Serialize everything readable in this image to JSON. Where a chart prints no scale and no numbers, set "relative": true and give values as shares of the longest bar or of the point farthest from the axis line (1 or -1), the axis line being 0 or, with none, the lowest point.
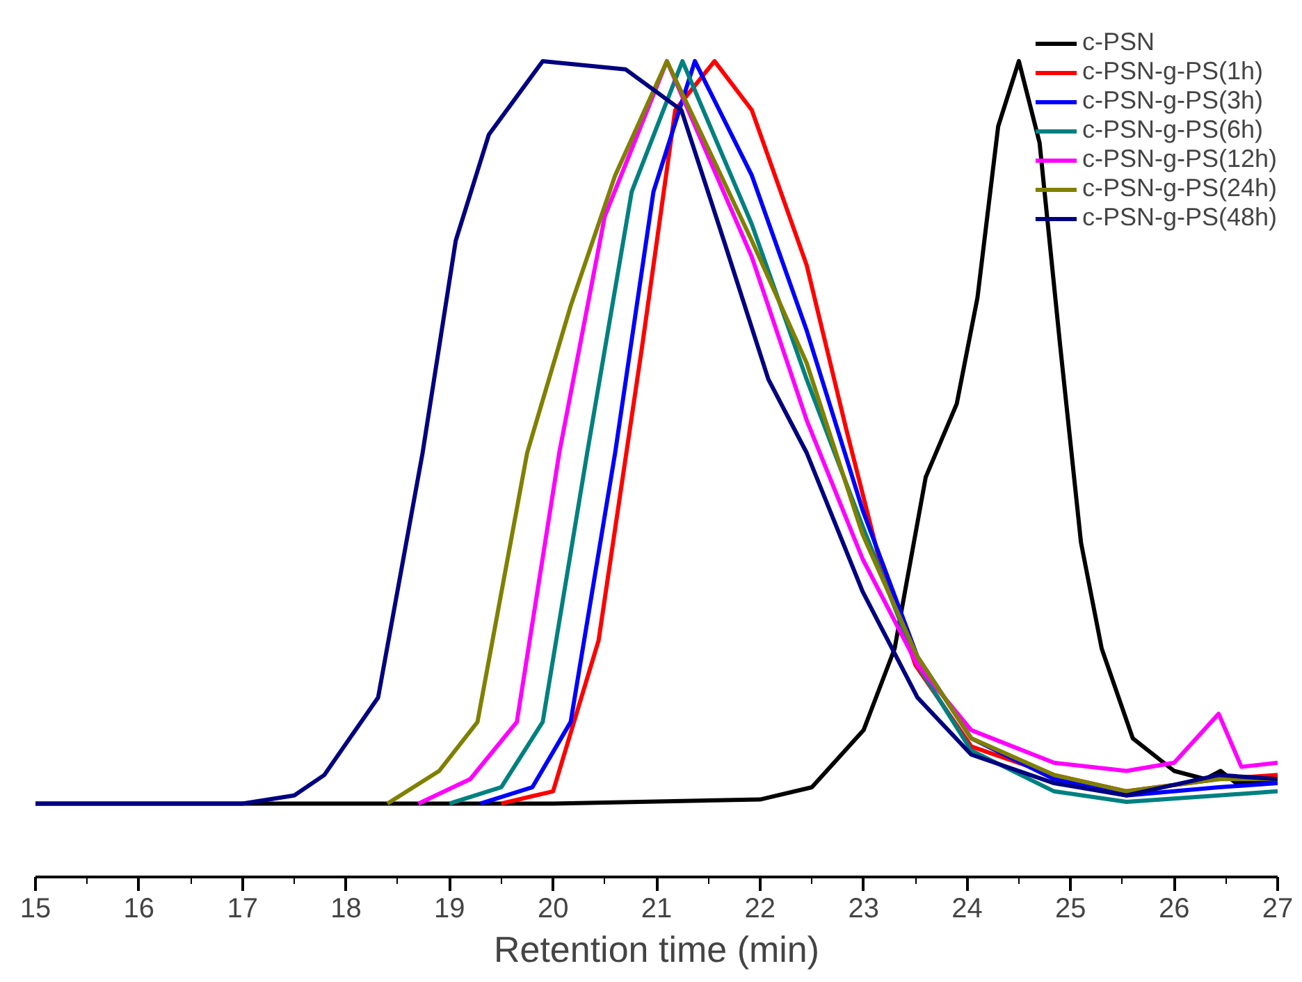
{
  "chart_data": {
    "type": "line",
    "xlabel": "Retention time (min)",
    "relative": true,
    "xlim": [
      15,
      27
    ],
    "xticks": [
      15,
      16,
      17,
      18,
      19,
      20,
      21,
      22,
      23,
      24,
      25,
      26,
      27
    ],
    "grid": false,
    "legend": "top right",
    "line_style": "solid",
    "marker": "none",
    "series": [
      {
        "name": "c-PSN",
        "color": "#000000",
        "x": [
          15,
          20,
          22,
          22.5,
          23,
          23.3,
          23.6,
          23.9,
          24.1,
          24.3,
          24.5,
          24.7,
          24.9,
          25.1,
          25.3,
          25.6,
          26,
          26.3,
          26.45,
          26.6,
          27
        ],
        "values": [
          0.09,
          0.09,
          0.095,
          0.11,
          0.18,
          0.28,
          0.49,
          0.58,
          0.71,
          0.92,
          1.0,
          0.9,
          0.65,
          0.41,
          0.28,
          0.17,
          0.13,
          0.12,
          0.13,
          0.115,
          0.12
        ]
      },
      {
        "name": "c-PSN-g-PS(1h)",
        "color": "#ff0000",
        "x": [
          19.5,
          20,
          20.44,
          20.86,
          21.18,
          21.56,
          21.92,
          22.45,
          22.83,
          23.15,
          23.5,
          24.04,
          24.84,
          25.54,
          26.43,
          27
        ],
        "values": [
          0.09,
          0.105,
          0.29,
          0.65,
          0.94,
          1.0,
          0.94,
          0.75,
          0.55,
          0.39,
          0.26,
          0.16,
          0.125,
          0.105,
          0.12,
          0.125
        ]
      },
      {
        "name": "c-PSN-g-PS(3h)",
        "color": "#0000ff",
        "x": [
          19.3,
          19.8,
          20.17,
          20.6,
          20.97,
          21.37,
          21.92,
          22.45,
          22.99,
          23.52,
          24.04,
          24.84,
          25.54,
          26.43,
          27
        ],
        "values": [
          0.09,
          0.11,
          0.19,
          0.52,
          0.84,
          1.0,
          0.86,
          0.67,
          0.45,
          0.27,
          0.17,
          0.12,
          0.1,
          0.11,
          0.115
        ]
      },
      {
        "name": "c-PSN-g-PS(6h)",
        "color": "#008080",
        "x": [
          19.0,
          19.5,
          19.9,
          20.33,
          20.76,
          21.25,
          21.92,
          22.45,
          22.99,
          23.52,
          24.04,
          24.84,
          25.54,
          26.43,
          27
        ],
        "values": [
          0.09,
          0.11,
          0.19,
          0.52,
          0.84,
          1.0,
          0.8,
          0.61,
          0.43,
          0.26,
          0.155,
          0.105,
          0.092,
          0.1,
          0.105
        ]
      },
      {
        "name": "c-PSN-g-PS(12h)",
        "color": "#ff00ff",
        "x": [
          18.7,
          19.2,
          19.65,
          20.06,
          20.5,
          21.1,
          21.92,
          22.45,
          22.99,
          23.52,
          24.04,
          24.84,
          25.54,
          26.0,
          26.43,
          26.65,
          27
        ],
        "values": [
          0.09,
          0.12,
          0.19,
          0.52,
          0.81,
          1.0,
          0.76,
          0.56,
          0.39,
          0.26,
          0.18,
          0.14,
          0.13,
          0.14,
          0.2,
          0.135,
          0.14
        ]
      },
      {
        "name": "c-PSN-g-PS(24h)",
        "color": "#808000",
        "x": [
          18.4,
          18.9,
          19.27,
          19.75,
          20.17,
          20.6,
          21.1,
          21.92,
          22.45,
          22.99,
          23.52,
          24.04,
          24.84,
          25.54,
          26.43,
          27
        ],
        "values": [
          0.09,
          0.13,
          0.19,
          0.52,
          0.7,
          0.86,
          1.0,
          0.78,
          0.63,
          0.42,
          0.27,
          0.17,
          0.125,
          0.105,
          0.12,
          0.12
        ]
      },
      {
        "name": "c-PSN-g-PS(48h)",
        "color": "#000080",
        "x": [
          15,
          17.0,
          17.5,
          17.79,
          18.31,
          18.74,
          19.06,
          19.38,
          19.9,
          20.7,
          21.24,
          21.65,
          22.08,
          22.45,
          22.99,
          23.52,
          24.04,
          24.84,
          25.54,
          26.43,
          27
        ],
        "values": [
          0.09,
          0.09,
          0.1,
          0.125,
          0.22,
          0.52,
          0.78,
          0.91,
          1.0,
          0.99,
          0.94,
          0.78,
          0.61,
          0.52,
          0.35,
          0.22,
          0.15,
          0.115,
          0.1,
          0.125,
          0.12
        ]
      }
    ]
  }
}
